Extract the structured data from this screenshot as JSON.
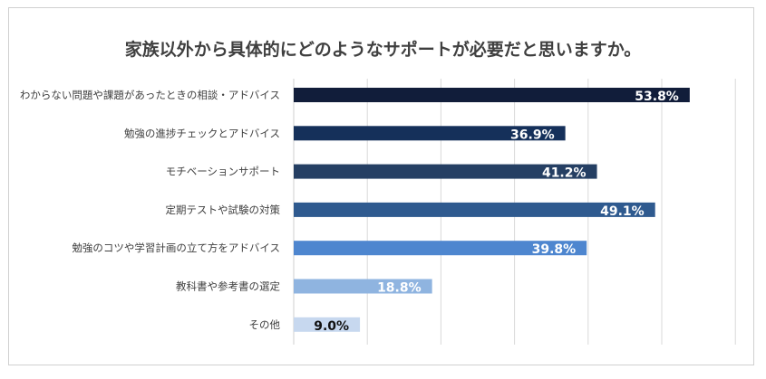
{
  "chart_data": {
    "type": "bar",
    "orientation": "horizontal",
    "title": "家族以外から具体的にどのようなサポートが必要だと思いますか。",
    "categories": [
      "わからない問題や課題があったときの相談・アドバイス",
      "勉強の進捗チェックとアドバイス",
      "モチベーションサポート",
      "定期テストや試験の対策",
      "勉強のコツや学習計画の立て方をアドバイス",
      "教科書や参考書の選定",
      "その他"
    ],
    "values": [
      53.8,
      36.9,
      41.2,
      49.1,
      39.8,
      18.8,
      9.0
    ],
    "data_labels": [
      "53.8%",
      "36.9%",
      "41.2%",
      "49.1%",
      "39.8%",
      "18.8%",
      "9.0%"
    ],
    "bar_colors": [
      "#111d3a",
      "#15305a",
      "#253f63",
      "#2f5a8f",
      "#4e86cf",
      "#8fb4e0",
      "#c7d8ef"
    ],
    "label_colors": [
      "#ffffff",
      "#ffffff",
      "#ffffff",
      "#ffffff",
      "#ffffff",
      "#ffffff",
      "#111111"
    ],
    "xlim": [
      0,
      60
    ],
    "grid": true,
    "legend": "none"
  }
}
